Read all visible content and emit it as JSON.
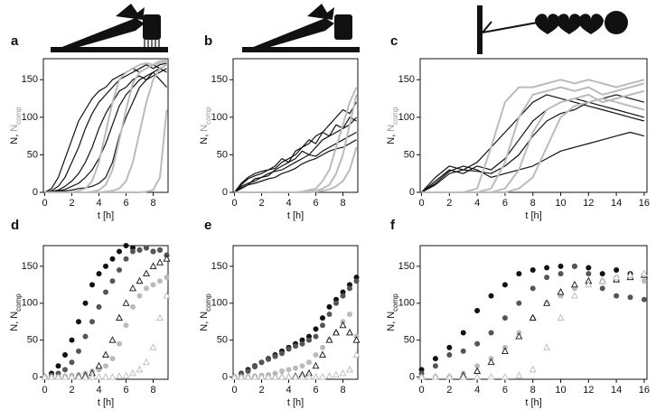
{
  "chart_data": [
    {
      "type": "line",
      "label": "a",
      "xlabel": "t [h]",
      "ylabel": {
        "text": "N,",
        "comp": "N",
        "sub": "comp",
        "comp_color": "#999999"
      },
      "xlim": [
        -0.1,
        9.1
      ],
      "ylim": [
        0,
        178
      ],
      "xticks": [
        0,
        2,
        4,
        6,
        8
      ],
      "yticks": [
        0,
        50,
        100,
        150
      ],
      "x": [
        0,
        0.5,
        1,
        1.5,
        2,
        2.5,
        3,
        3.5,
        4,
        4.5,
        5,
        5.5,
        6,
        6.5,
        7,
        7.5,
        8,
        8.5,
        9
      ],
      "series": [
        {
          "color": "#111111",
          "values": [
            0,
            5,
            20,
            45,
            70,
            95,
            110,
            125,
            135,
            140,
            150,
            155,
            160,
            165,
            160,
            165,
            170,
            165,
            170
          ]
        },
        {
          "color": "#111111",
          "values": [
            0,
            2,
            8,
            20,
            40,
            60,
            85,
            105,
            120,
            130,
            140,
            150,
            155,
            160,
            165,
            170,
            165,
            170,
            172
          ]
        },
        {
          "color": "#111111",
          "values": [
            0,
            1,
            3,
            8,
            15,
            25,
            40,
            60,
            85,
            105,
            120,
            135,
            140,
            150,
            155,
            150,
            160,
            165,
            160
          ]
        },
        {
          "color": "#111111",
          "values": [
            0,
            0,
            2,
            4,
            8,
            12,
            20,
            30,
            45,
            65,
            90,
            115,
            130,
            140,
            150,
            155,
            160,
            150,
            140
          ]
        },
        {
          "color": "#111111",
          "values": [
            0,
            0,
            1,
            2,
            3,
            5,
            6,
            8,
            12,
            20,
            40,
            75,
            100,
            120,
            140,
            150,
            155,
            160,
            165
          ]
        },
        {
          "color": "#bbbbbb",
          "values": [
            0,
            0,
            0,
            0,
            0,
            2,
            5,
            15,
            40,
            80,
            120,
            150,
            160,
            165,
            170,
            172,
            170,
            175,
            176
          ]
        },
        {
          "color": "#bbbbbb",
          "values": [
            0,
            0,
            0,
            0,
            0,
            0,
            0,
            1,
            3,
            10,
            30,
            70,
            110,
            145,
            160,
            165,
            170,
            172,
            175
          ]
        },
        {
          "color": "#bbbbbb",
          "values": [
            0,
            0,
            0,
            0,
            0,
            0,
            0,
            0,
            0,
            1,
            2,
            5,
            15,
            40,
            80,
            120,
            150,
            165,
            170
          ]
        },
        {
          "color": "#bbbbbb",
          "values": [
            0,
            0,
            0,
            0,
            0,
            0,
            0,
            0,
            0,
            0,
            0,
            0,
            0,
            0,
            0,
            1,
            3,
            20,
            110
          ]
        }
      ]
    },
    {
      "type": "line",
      "label": "b",
      "xlabel": "t [h]",
      "ylabel": {
        "text": "N,",
        "comp": "N",
        "sub": "comp",
        "comp_color": "#999999"
      },
      "xlim": [
        -0.1,
        9.1
      ],
      "ylim": [
        0,
        178
      ],
      "xticks": [
        0,
        2,
        4,
        6,
        8
      ],
      "yticks": [
        0,
        50,
        100,
        150
      ],
      "x": [
        0,
        0.5,
        1,
        1.5,
        2,
        2.5,
        3,
        3.5,
        4,
        4.5,
        5,
        5.5,
        6,
        6.5,
        7,
        7.5,
        8,
        8.5,
        9
      ],
      "series": [
        {
          "color": "#111111",
          "values": [
            0,
            10,
            18,
            22,
            25,
            30,
            35,
            45,
            40,
            55,
            60,
            70,
            65,
            80,
            75,
            90,
            85,
            100,
            95
          ]
        },
        {
          "color": "#111111",
          "values": [
            0,
            8,
            12,
            15,
            20,
            25,
            28,
            30,
            35,
            40,
            45,
            50,
            48,
            55,
            60,
            65,
            70,
            75,
            80
          ]
        },
        {
          "color": "#111111",
          "values": [
            0,
            5,
            10,
            18,
            20,
            22,
            30,
            35,
            40,
            45,
            55,
            50,
            60,
            70,
            75,
            80,
            85,
            90,
            100
          ]
        },
        {
          "color": "#111111",
          "values": [
            0,
            12,
            20,
            25,
            28,
            30,
            32,
            40,
            45,
            50,
            60,
            65,
            75,
            80,
            90,
            100,
            110,
            105,
            120
          ]
        },
        {
          "color": "#111111",
          "values": [
            0,
            6,
            10,
            12,
            15,
            18,
            20,
            25,
            28,
            32,
            38,
            42,
            45,
            50,
            55,
            58,
            60,
            65,
            70
          ]
        },
        {
          "color": "#bbbbbb",
          "values": [
            0,
            0,
            0,
            0,
            0,
            0,
            0,
            0,
            0,
            0,
            1,
            3,
            5,
            15,
            30,
            60,
            90,
            120,
            140
          ]
        },
        {
          "color": "#bbbbbb",
          "values": [
            0,
            0,
            0,
            0,
            0,
            0,
            0,
            0,
            0,
            0,
            0,
            1,
            2,
            5,
            10,
            25,
            50,
            90,
            130
          ]
        },
        {
          "color": "#bbbbbb",
          "values": [
            0,
            0,
            0,
            0,
            0,
            0,
            0,
            0,
            0,
            0,
            0,
            0,
            1,
            2,
            4,
            8,
            15,
            30,
            60
          ]
        }
      ]
    },
    {
      "type": "line",
      "label": "c",
      "xlabel": "t [h]",
      "ylabel": {
        "text": "N,",
        "comp": "N",
        "sub": "comp",
        "comp_color": "#999999"
      },
      "xlim": [
        -0.1,
        16.2
      ],
      "ylim": [
        0,
        178
      ],
      "xticks": [
        0,
        2,
        4,
        6,
        8,
        10,
        12,
        14,
        16
      ],
      "yticks": [
        0,
        50,
        100,
        150
      ],
      "x": [
        0,
        1,
        2,
        3,
        4,
        5,
        6,
        7,
        8,
        9,
        10,
        11,
        12,
        13,
        14,
        15,
        16
      ],
      "series": [
        {
          "color": "#111111",
          "values": [
            0,
            20,
            35,
            30,
            40,
            60,
            80,
            100,
            120,
            130,
            125,
            120,
            115,
            110,
            105,
            100,
            95
          ]
        },
        {
          "color": "#111111",
          "values": [
            0,
            15,
            30,
            25,
            35,
            30,
            45,
            70,
            95,
            110,
            120,
            125,
            120,
            115,
            110,
            105,
            100
          ]
        },
        {
          "color": "#111111",
          "values": [
            0,
            10,
            25,
            30,
            28,
            25,
            35,
            50,
            75,
            95,
            105,
            110,
            120,
            125,
            130,
            125,
            120
          ]
        },
        {
          "color": "#111111",
          "values": [
            0,
            12,
            28,
            35,
            30,
            20,
            25,
            30,
            35,
            45,
            55,
            60,
            65,
            70,
            75,
            80,
            75
          ]
        },
        {
          "color": "#bbbbbb",
          "values": [
            0,
            0,
            0,
            0,
            5,
            60,
            120,
            140,
            140,
            145,
            150,
            145,
            150,
            145,
            140,
            145,
            150
          ]
        },
        {
          "color": "#bbbbbb",
          "values": [
            0,
            0,
            0,
            0,
            0,
            5,
            40,
            100,
            130,
            135,
            140,
            135,
            140,
            130,
            135,
            140,
            145
          ]
        },
        {
          "color": "#bbbbbb",
          "values": [
            0,
            0,
            0,
            0,
            0,
            0,
            5,
            30,
            80,
            110,
            120,
            125,
            130,
            120,
            125,
            130,
            135
          ]
        },
        {
          "color": "#bbbbbb",
          "values": [
            0,
            0,
            0,
            0,
            0,
            0,
            0,
            5,
            20,
            60,
            100,
            115,
            120,
            125,
            120,
            115,
            110
          ]
        }
      ]
    },
    {
      "type": "scatter",
      "label": "d",
      "xlabel": "t [h]",
      "ylabel": {
        "text": "N,",
        "comp": "N",
        "sub": "comp",
        "comp_color": "#111111"
      },
      "xlim": [
        -0.1,
        9.1
      ],
      "ylim": [
        -3,
        178
      ],
      "xticks": [
        0,
        2,
        4,
        6,
        8
      ],
      "yticks": [
        0,
        50,
        100,
        150
      ],
      "x": [
        0,
        0.5,
        1,
        1.5,
        2,
        2.5,
        3,
        3.5,
        4,
        4.5,
        5,
        5.5,
        6,
        6.5,
        7,
        7.5,
        8,
        8.5,
        9
      ],
      "series": [
        {
          "color": "#111111",
          "marker": "dot",
          "values": [
            0,
            5,
            15,
            30,
            50,
            75,
            100,
            125,
            140,
            150,
            160,
            170,
            178,
            175,
            172,
            175,
            170,
            172,
            165
          ]
        },
        {
          "color": "#555555",
          "marker": "dot",
          "values": [
            0,
            2,
            5,
            10,
            20,
            35,
            55,
            75,
            95,
            115,
            130,
            145,
            160,
            170,
            172,
            175,
            170,
            172,
            165
          ]
        },
        {
          "color": "#bbbbbb",
          "marker": "dot",
          "values": [
            0,
            0,
            0,
            1,
            2,
            3,
            5,
            8,
            10,
            15,
            25,
            45,
            70,
            95,
            110,
            120,
            125,
            130,
            135
          ]
        },
        {
          "color": "#111111",
          "marker": "triangle",
          "values": [
            0,
            0,
            0,
            0,
            0,
            1,
            2,
            5,
            15,
            30,
            50,
            80,
            100,
            120,
            130,
            140,
            150,
            155,
            160
          ]
        },
        {
          "color": "#bbbbbb",
          "marker": "triangle",
          "values": [
            0,
            0,
            0,
            0,
            0,
            0,
            0,
            0,
            0,
            0,
            0,
            1,
            2,
            5,
            10,
            20,
            40,
            80,
            110
          ]
        }
      ]
    },
    {
      "type": "scatter",
      "label": "e",
      "xlabel": "t [h]",
      "ylabel": {
        "text": "N,",
        "comp": "N",
        "sub": "comp",
        "comp_color": "#111111"
      },
      "xlim": [
        -0.1,
        9.1
      ],
      "ylim": [
        -3,
        178
      ],
      "xticks": [
        0,
        2,
        4,
        6,
        8
      ],
      "yticks": [
        0,
        50,
        100,
        150
      ],
      "x": [
        0,
        0.5,
        1,
        1.5,
        2,
        2.5,
        3,
        3.5,
        4,
        4.5,
        5,
        5.5,
        6,
        6.5,
        7,
        7.5,
        8,
        8.5,
        9
      ],
      "series": [
        {
          "color": "#111111",
          "marker": "dot",
          "values": [
            0,
            5,
            10,
            15,
            20,
            25,
            30,
            35,
            40,
            45,
            50,
            55,
            65,
            80,
            95,
            105,
            115,
            125,
            135
          ]
        },
        {
          "color": "#555555",
          "marker": "dot",
          "values": [
            0,
            4,
            8,
            14,
            20,
            24,
            28,
            32,
            38,
            42,
            45,
            50,
            55,
            70,
            85,
            100,
            110,
            120,
            130
          ]
        },
        {
          "color": "#bbbbbb",
          "marker": "dot",
          "values": [
            0,
            0,
            0,
            1,
            2,
            3,
            5,
            8,
            10,
            12,
            15,
            20,
            30,
            40,
            50,
            60,
            75,
            85,
            55
          ]
        },
        {
          "color": "#111111",
          "marker": "triangle",
          "values": [
            0,
            0,
            0,
            0,
            0,
            0,
            0,
            0,
            0,
            1,
            3,
            5,
            15,
            30,
            50,
            60,
            70,
            60,
            50
          ]
        },
        {
          "color": "#bbbbbb",
          "marker": "triangle",
          "values": [
            0,
            0,
            0,
            0,
            0,
            0,
            0,
            0,
            0,
            0,
            0,
            0,
            0,
            0,
            1,
            3,
            5,
            10,
            30
          ]
        }
      ]
    },
    {
      "type": "scatter",
      "label": "f",
      "xlabel": "t [h]",
      "ylabel": {
        "text": "N,",
        "comp": "N",
        "sub": "comp",
        "comp_color": "#111111"
      },
      "xlim": [
        -0.1,
        16.2
      ],
      "ylim": [
        -3,
        178
      ],
      "xticks": [
        0,
        2,
        4,
        6,
        8,
        10,
        12,
        14,
        16
      ],
      "yticks": [
        0,
        50,
        100,
        150
      ],
      "x": [
        0,
        1,
        2,
        3,
        4,
        5,
        6,
        7,
        8,
        9,
        10,
        11,
        12,
        13,
        14,
        15,
        16
      ],
      "series": [
        {
          "color": "#111111",
          "marker": "dot",
          "values": [
            10,
            25,
            40,
            60,
            90,
            110,
            125,
            140,
            145,
            148,
            150,
            150,
            148,
            140,
            145,
            140,
            138
          ]
        },
        {
          "color": "#555555",
          "marker": "dot",
          "values": [
            5,
            15,
            30,
            35,
            45,
            60,
            80,
            100,
            120,
            135,
            140,
            150,
            140,
            120,
            110,
            108,
            105
          ]
        },
        {
          "color": "#bbbbbb",
          "marker": "dot",
          "values": [
            0,
            0,
            0,
            5,
            15,
            25,
            40,
            60,
            80,
            100,
            110,
            120,
            125,
            130,
            135,
            135,
            130
          ]
        },
        {
          "color": "#111111",
          "marker": "triangle",
          "values": [
            0,
            0,
            0,
            2,
            8,
            20,
            35,
            55,
            80,
            100,
            115,
            125,
            130,
            130,
            132,
            135,
            138
          ]
        },
        {
          "color": "#bbbbbb",
          "marker": "triangle",
          "values": [
            0,
            0,
            0,
            0,
            0,
            0,
            0,
            2,
            10,
            40,
            80,
            110,
            125,
            130,
            135,
            138,
            140
          ]
        }
      ]
    }
  ]
}
